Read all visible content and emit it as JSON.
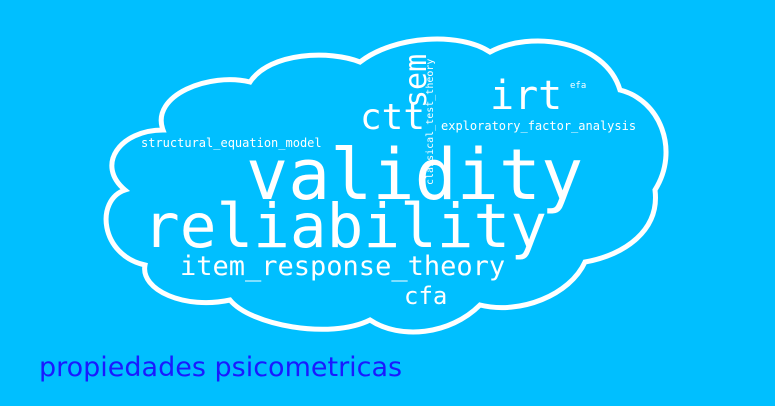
{
  "colors": {
    "background": "#00bfff",
    "cloud_outline": "#ffffff",
    "words": "#ffffff",
    "caption": "#1a1aff"
  },
  "wordcloud": {
    "shape": "cloud",
    "words": {
      "validity": "validity",
      "reliability": "reliability",
      "item_response_theory": "item_response_theory",
      "irt": "irt",
      "ctt": "ctt",
      "sem": "sem",
      "cfa": "cfa",
      "classical_test_theory": "classical_test_theory",
      "exploratory_factor_analysis": "exploratory_factor_analysis",
      "structural_equation_model": "structural_equation_model",
      "efa": "efa"
    }
  },
  "caption": "propiedades psicometricas"
}
